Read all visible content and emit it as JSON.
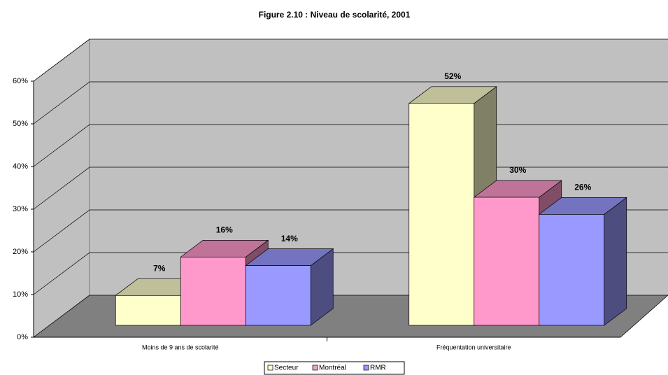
{
  "chart_data": {
    "type": "bar3d",
    "title": "Figure 2.10 : Niveau de scolarité, 2001",
    "categories": [
      "Moins de 9 ans de scolarité",
      "Fréquentation universitaire"
    ],
    "series": [
      {
        "name": "Secteur",
        "color": "#ffffcc",
        "values": [
          7,
          52
        ],
        "value_labels": [
          "7%",
          "52%"
        ]
      },
      {
        "name": "Montréal",
        "color": "#ff99cc",
        "values": [
          16,
          30
        ],
        "value_labels": [
          "16%",
          "30%"
        ]
      },
      {
        "name": "RMR",
        "color": "#9999ff",
        "values": [
          14,
          26
        ],
        "value_labels": [
          "14%",
          "26%"
        ]
      }
    ],
    "ylim": [
      0,
      60
    ],
    "yticks": [
      {
        "value": 0,
        "label": "0%"
      },
      {
        "value": 10,
        "label": "10%"
      },
      {
        "value": 20,
        "label": "20%"
      },
      {
        "value": 30,
        "label": "30%"
      },
      {
        "value": 40,
        "label": "40%"
      },
      {
        "value": 50,
        "label": "50%"
      },
      {
        "value": 60,
        "label": "60%"
      }
    ],
    "grid": true,
    "legend": "bottom"
  }
}
